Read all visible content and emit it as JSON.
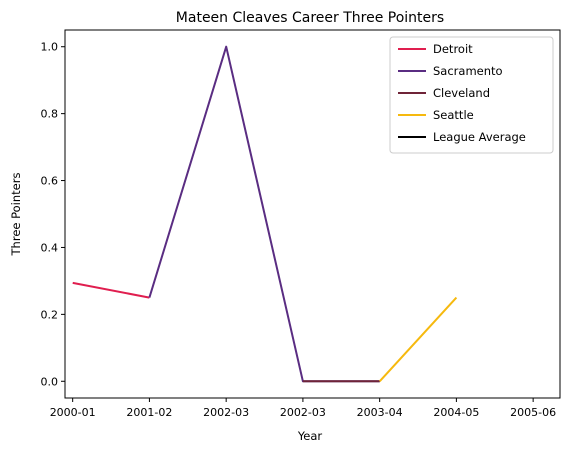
{
  "chart_data": {
    "type": "line",
    "title": "Mateen Cleaves Career Three Pointers",
    "xlabel": "Year",
    "ylabel": "Three Pointers",
    "categories": [
      "2000-01",
      "2001-02",
      "2002-03",
      "2002-03",
      "2003-04",
      "2004-05",
      "2005-06"
    ],
    "x_ticks": [
      0,
      1,
      2,
      3,
      4,
      5,
      6
    ],
    "xlim": [
      -0.1,
      6.35
    ],
    "ylim": [
      -0.05,
      1.05
    ],
    "y_ticks": [
      "0.0",
      "0.2",
      "0.4",
      "0.6",
      "0.8",
      "1.0"
    ],
    "y_tick_values": [
      0.0,
      0.2,
      0.4,
      0.6,
      0.8,
      1.0
    ],
    "grid": false,
    "legend_position": "top-right",
    "series": [
      {
        "name": "Detroit",
        "color": "#e01e4f",
        "x": [
          0,
          1
        ],
        "y": [
          0.294,
          0.25
        ]
      },
      {
        "name": "Sacramento",
        "color": "#5a2d82",
        "x": [
          1,
          2,
          3,
          4
        ],
        "y": [
          0.25,
          1.0,
          0.0,
          0.0
        ]
      },
      {
        "name": "Cleveland",
        "color": "#6f2438",
        "x": [
          3,
          4
        ],
        "y": [
          0.0,
          0.0
        ]
      },
      {
        "name": "Seattle",
        "color": "#f6b90e",
        "x": [
          4,
          5
        ],
        "y": [
          0.0,
          0.25
        ]
      },
      {
        "name": "League Average",
        "color": "#000000",
        "x": [],
        "y": []
      }
    ]
  }
}
